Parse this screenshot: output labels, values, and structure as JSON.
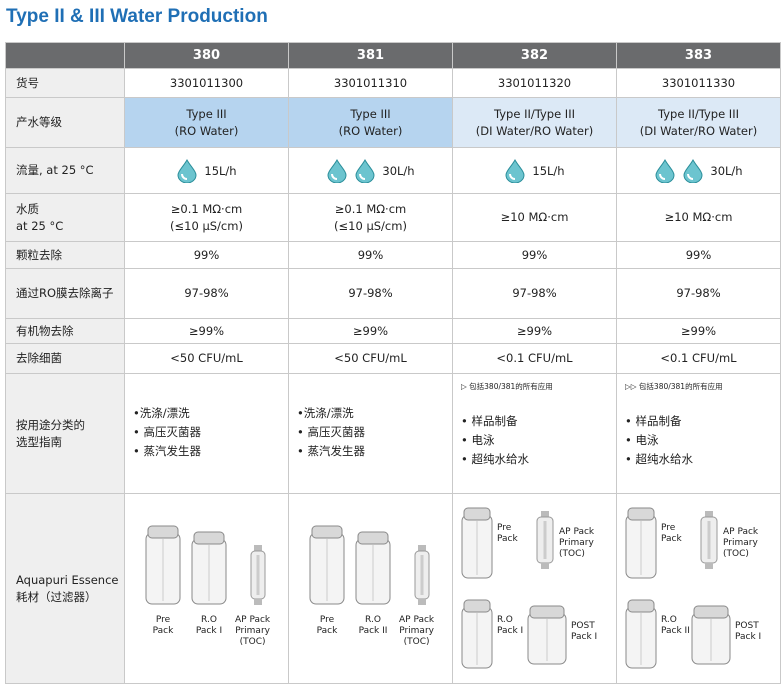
{
  "title": "Type II & III Water Production",
  "table": {
    "columns": [
      "380",
      "381",
      "382",
      "383"
    ],
    "rows": [
      {
        "label": [
          "货号"
        ],
        "cells": [
          [
            "3301011300"
          ],
          [
            "3301011310"
          ],
          [
            "3301011320"
          ],
          [
            "3301011330"
          ]
        ]
      },
      {
        "label": [
          "产水等级"
        ],
        "cells": [
          [
            "Type III",
            "(RO Water)"
          ],
          [
            "Type III",
            "(RO Water)"
          ],
          [
            "Type II/Type III",
            "(DI Water/RO Water)"
          ],
          [
            "Type II/Type III",
            "(DI Water/RO Water)"
          ]
        ]
      },
      {
        "label": [
          "流量, at 25 °C"
        ],
        "cells": [
          [
            "15L/h"
          ],
          [
            "30L/h"
          ],
          [
            "15L/h"
          ],
          [
            "30L/h"
          ]
        ]
      },
      {
        "label": [
          "水质",
          "at 25 °C"
        ],
        "cells": [
          [
            "≥0.1 MΩ·cm",
            "(≤10 µS/cm)"
          ],
          [
            "≥0.1 MΩ·cm",
            "(≤10 µS/cm)"
          ],
          [
            "≥10 MΩ·cm"
          ],
          [
            "≥10 MΩ·cm"
          ]
        ]
      },
      {
        "label": [
          "颗粒去除"
        ],
        "cells": [
          [
            "99%"
          ],
          [
            "99%"
          ],
          [
            "99%"
          ],
          [
            "99%"
          ]
        ]
      },
      {
        "label": [
          "通过RO膜去除离子"
        ],
        "cells": [
          [
            "97-98%"
          ],
          [
            "97-98%"
          ],
          [
            "97-98%"
          ],
          [
            "97-98%"
          ]
        ]
      },
      {
        "label": [
          "有机物去除"
        ],
        "cells": [
          [
            "≥99%"
          ],
          [
            "≥99%"
          ],
          [
            "≥99%"
          ],
          [
            "≥99%"
          ]
        ]
      },
      {
        "label": [
          "去除细菌"
        ],
        "cells": [
          [
            "<50 CFU/mL"
          ],
          [
            "<50 CFU/mL"
          ],
          [
            "<0.1 CFU/mL"
          ],
          [
            "<0.1 CFU/mL"
          ]
        ]
      },
      {
        "label": [
          "按用途分类的",
          "选型指南"
        ],
        "cells": [
          {
            "items": [
              "•洗涤/漂洗",
              "• 高压灭菌器",
              "• 蒸汽发生器"
            ]
          },
          {
            "items": [
              "•洗涤/漂洗",
              "• 高压灭菌器",
              "• 蒸汽发生器"
            ]
          },
          {
            "note": "▷ 包括380/381的所有应用",
            "items": [
              "• 样品制备",
              "• 电泳",
              "• 超纯水给水"
            ]
          },
          {
            "note": "▷▷ 包括380/381的所有应用",
            "items": [
              "• 样品制备",
              "• 电泳",
              "• 超纯水给水"
            ]
          }
        ]
      },
      {
        "label": [
          "Aquapuri Essence",
          "耗材（过滤器）"
        ],
        "cells": [
          {
            "products": [
              [
                "Pre",
                "Pack"
              ],
              [
                "R.O",
                "Pack I"
              ],
              [
                "AP Pack",
                "Primary",
                "(TOC)"
              ]
            ]
          },
          {
            "products": [
              [
                "Pre",
                "Pack"
              ],
              [
                "R.O",
                "Pack II"
              ],
              [
                "AP Pack",
                "Primary",
                "(TOC)"
              ]
            ]
          },
          {
            "products": [
              [
                "Pre",
                "Pack"
              ],
              [
                "AP Pack",
                "Primary",
                "(TOC)"
              ],
              [
                "R.O",
                "Pack I"
              ],
              [
                "POST",
                "Pack I"
              ]
            ]
          },
          {
            "products": [
              [
                "Pre",
                "Pack"
              ],
              [
                "AP Pack",
                "Primary",
                "(TOC)"
              ],
              [
                "R.O",
                "Pack II"
              ],
              [
                "POST",
                "Pack I"
              ]
            ]
          }
        ]
      }
    ]
  }
}
